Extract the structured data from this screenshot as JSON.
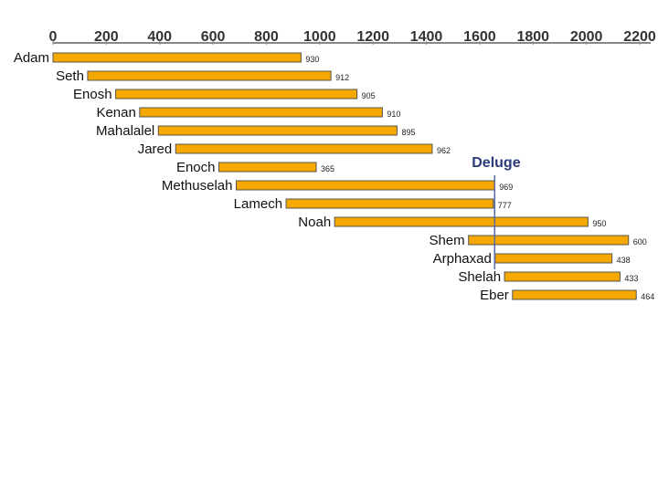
{
  "chart_data": {
    "type": "bar",
    "orientation": "horizontal-timeline",
    "xlim": [
      0,
      2200
    ],
    "x_ticks": [
      "0",
      "200",
      "400",
      "600",
      "800",
      "1000",
      "1200",
      "1400",
      "1600",
      "1800",
      "2000",
      "2200"
    ],
    "grid": false,
    "legend": "none",
    "colors": {
      "bar": "#f5a800",
      "bar_edge": "#555555",
      "marker": "#5a6aa8",
      "axis": "#888888"
    },
    "bars": [
      {
        "name": "Adam",
        "start": 0,
        "value": 930,
        "label": "930"
      },
      {
        "name": "Seth",
        "start": 130,
        "value": 912,
        "label": "912"
      },
      {
        "name": "Enosh",
        "start": 235,
        "value": 905,
        "label": "905"
      },
      {
        "name": "Kenan",
        "start": 325,
        "value": 910,
        "label": "910"
      },
      {
        "name": "Mahalalel",
        "start": 395,
        "value": 895,
        "label": "895"
      },
      {
        "name": "Jared",
        "start": 460,
        "value": 962,
        "label": "962"
      },
      {
        "name": "Enoch",
        "start": 622,
        "value": 365,
        "label": "365"
      },
      {
        "name": "Methuselah",
        "start": 687,
        "value": 969,
        "label": "969"
      },
      {
        "name": "Lamech",
        "start": 874,
        "value": 777,
        "label": "777"
      },
      {
        "name": "Noah",
        "start": 1056,
        "value": 950,
        "label": "950"
      },
      {
        "name": "Shem",
        "start": 1558,
        "value": 600,
        "label": "600"
      },
      {
        "name": "Arphaxad",
        "start": 1658,
        "value": 438,
        "label": "438"
      },
      {
        "name": "Shelah",
        "start": 1693,
        "value": 433,
        "label": "433"
      },
      {
        "name": "Eber",
        "start": 1723,
        "value": 464,
        "label": "464"
      }
    ],
    "annotations": [
      {
        "text": "Deluge",
        "x": 1656
      }
    ]
  }
}
